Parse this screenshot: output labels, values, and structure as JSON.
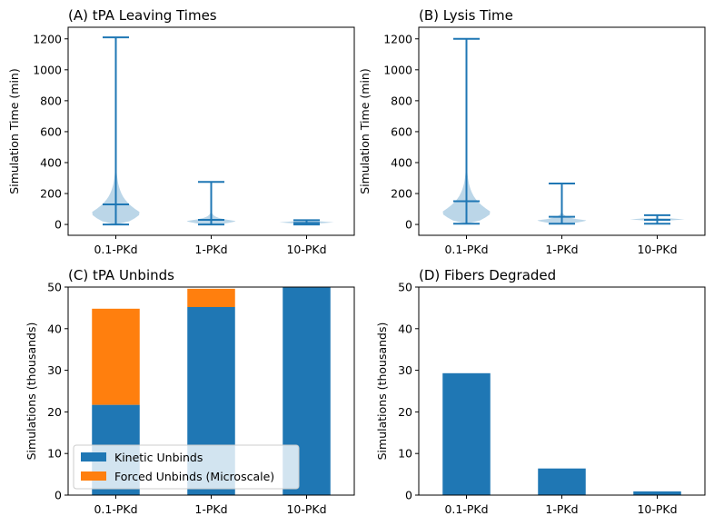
{
  "chart_data": [
    {
      "panel": "A",
      "type": "violin",
      "title": "(A) tPA Leaving Times",
      "ylabel": "Simulation Time (min)",
      "categories": [
        "0.1-PKd",
        "1-PKd",
        "10-PKd"
      ],
      "yticks": [
        0,
        200,
        400,
        600,
        800,
        1000,
        1200
      ],
      "ylim": [
        -70,
        1275
      ],
      "violins": [
        {
          "min": 0,
          "median": 130,
          "max": 1210
        },
        {
          "min": 0,
          "median": 30,
          "max": 275
        },
        {
          "min": 0,
          "median": 10,
          "max": 28
        }
      ],
      "colors": {
        "violin_fill": "#1f77b4",
        "line": "#1f77b4"
      }
    },
    {
      "panel": "B",
      "type": "violin",
      "title": "(B) Lysis Time",
      "ylabel": "Simulation Time (min)",
      "categories": [
        "0.1-PKd",
        "1-PKd",
        "10-PKd"
      ],
      "yticks": [
        0,
        200,
        400,
        600,
        800,
        1000,
        1200
      ],
      "ylim": [
        -70,
        1275
      ],
      "violins": [
        {
          "min": 5,
          "median": 150,
          "max": 1200
        },
        {
          "min": 5,
          "median": 50,
          "max": 265
        },
        {
          "min": 5,
          "median": 30,
          "max": 60
        }
      ],
      "colors": {
        "violin_fill": "#1f77b4",
        "line": "#1f77b4"
      }
    },
    {
      "panel": "C",
      "type": "bar",
      "stacked": true,
      "title": "(C) tPA Unbinds",
      "ylabel": "Simulations (thousands)",
      "categories": [
        "0.1-PKd",
        "1-PKd",
        "10-PKd"
      ],
      "yticks": [
        0,
        10,
        20,
        30,
        40,
        50
      ],
      "ylim": [
        0,
        50
      ],
      "series": [
        {
          "name": "Kinetic Unbinds",
          "values": [
            21.7,
            45.2,
            50
          ],
          "color": "#1f77b4"
        },
        {
          "name": "Forced Unbinds (Microscale)",
          "values": [
            23.1,
            4.4,
            0
          ],
          "color": "#ff7f0e"
        }
      ],
      "legend_position": "lower-left"
    },
    {
      "panel": "D",
      "type": "bar",
      "title": "(D) Fibers Degraded",
      "ylabel": "Simulations (thousands)",
      "categories": [
        "0.1-PKd",
        "1-PKd",
        "10-PKd"
      ],
      "yticks": [
        0,
        10,
        20,
        30,
        40,
        50
      ],
      "ylim": [
        0,
        50
      ],
      "series": [
        {
          "values": [
            29.3,
            6.4,
            0.9
          ],
          "color": "#1f77b4"
        }
      ]
    }
  ]
}
